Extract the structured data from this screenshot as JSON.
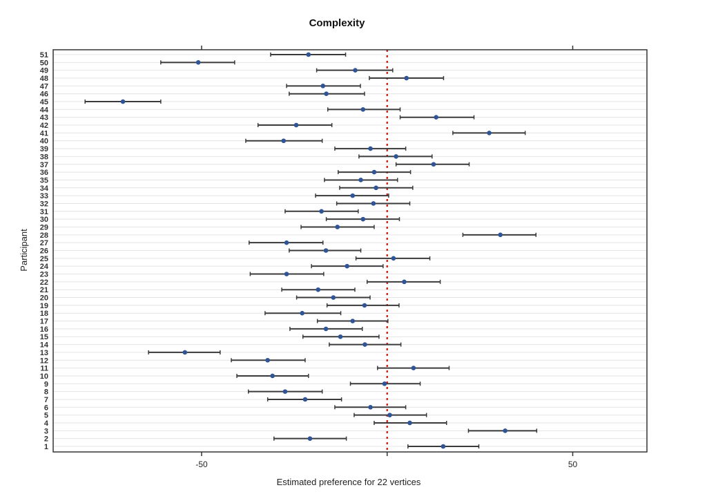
{
  "chart_data": {
    "type": "scatter",
    "subtype": "dot-plot-with-error-bars",
    "title": "Complexity",
    "xlabel": "Estimated preference for 22 vertices",
    "ylabel": "Participant",
    "xlim": [
      -90,
      70
    ],
    "xticks": [
      -50,
      50
    ],
    "reference_line": 0,
    "grid": "horizontal",
    "colors": {
      "point": "#2f5597",
      "bar": "#3a3a3a",
      "reference": "#d42a1e",
      "grid": "#e4e4e4"
    },
    "participants": [
      {
        "id": "1",
        "est": 15.1,
        "lo": 5.6,
        "hi": 24.7
      },
      {
        "id": "2",
        "est": -20.8,
        "lo": -30.5,
        "hi": -11.0
      },
      {
        "id": "3",
        "est": 31.8,
        "lo": 21.9,
        "hi": 40.3
      },
      {
        "id": "4",
        "est": 6.1,
        "lo": -3.5,
        "hi": 16.0
      },
      {
        "id": "5",
        "est": 0.7,
        "lo": -8.9,
        "hi": 10.6
      },
      {
        "id": "6",
        "est": -4.5,
        "lo": -14.1,
        "hi": 5.0
      },
      {
        "id": "7",
        "est": -22.1,
        "lo": -32.2,
        "hi": -12.3
      },
      {
        "id": "8",
        "est": -27.5,
        "lo": -37.4,
        "hi": -17.5
      },
      {
        "id": "9",
        "est": -0.7,
        "lo": -9.9,
        "hi": 8.9
      },
      {
        "id": "10",
        "est": -30.9,
        "lo": -40.5,
        "hi": -21.2
      },
      {
        "id": "11",
        "est": 7.1,
        "lo": -2.6,
        "hi": 16.7
      },
      {
        "id": "12",
        "est": -32.2,
        "lo": -42.0,
        "hi": -22.1
      },
      {
        "id": "13",
        "est": -54.5,
        "lo": -64.3,
        "hi": -45.0
      },
      {
        "id": "14",
        "est": -6.0,
        "lo": -15.6,
        "hi": 3.7
      },
      {
        "id": "15",
        "est": -12.6,
        "lo": -22.7,
        "hi": -2.2
      },
      {
        "id": "16",
        "est": -16.5,
        "lo": -26.2,
        "hi": -6.7
      },
      {
        "id": "17",
        "est": -9.3,
        "lo": -18.8,
        "hi": 0.2
      },
      {
        "id": "18",
        "est": -22.9,
        "lo": -32.9,
        "hi": -12.5
      },
      {
        "id": "19",
        "est": -6.1,
        "lo": -16.2,
        "hi": 3.2
      },
      {
        "id": "20",
        "est": -14.5,
        "lo": -24.4,
        "hi": -4.6
      },
      {
        "id": "21",
        "est": -18.6,
        "lo": -28.4,
        "hi": -8.7
      },
      {
        "id": "22",
        "est": 4.6,
        "lo": -5.4,
        "hi": 14.3
      },
      {
        "id": "23",
        "est": -27.1,
        "lo": -36.9,
        "hi": -17.1
      },
      {
        "id": "24",
        "est": -10.8,
        "lo": -20.4,
        "hi": -1.1
      },
      {
        "id": "25",
        "est": 1.7,
        "lo": -8.4,
        "hi": 11.5
      },
      {
        "id": "26",
        "est": -16.5,
        "lo": -26.4,
        "hi": -7.1
      },
      {
        "id": "27",
        "est": -27.1,
        "lo": -37.2,
        "hi": -17.3
      },
      {
        "id": "28",
        "est": 30.5,
        "lo": 20.4,
        "hi": 40.1
      },
      {
        "id": "29",
        "est": -13.4,
        "lo": -23.2,
        "hi": -3.5
      },
      {
        "id": "30",
        "est": -6.5,
        "lo": -16.4,
        "hi": 3.3
      },
      {
        "id": "31",
        "est": -17.7,
        "lo": -27.5,
        "hi": -7.8
      },
      {
        "id": "32",
        "est": -3.7,
        "lo": -13.6,
        "hi": 6.1
      },
      {
        "id": "33",
        "est": -9.3,
        "lo": -19.3,
        "hi": 0.4
      },
      {
        "id": "34",
        "est": -3.0,
        "lo": -12.8,
        "hi": 6.9
      },
      {
        "id": "35",
        "est": -7.1,
        "lo": -16.9,
        "hi": 2.8
      },
      {
        "id": "36",
        "est": -3.5,
        "lo": -13.2,
        "hi": 6.3
      },
      {
        "id": "37",
        "est": 12.5,
        "lo": 2.4,
        "hi": 22.1
      },
      {
        "id": "38",
        "est": 2.4,
        "lo": -7.6,
        "hi": 12.1
      },
      {
        "id": "39",
        "est": -4.5,
        "lo": -14.1,
        "hi": 5.0
      },
      {
        "id": "40",
        "est": -27.9,
        "lo": -38.1,
        "hi": -17.5
      },
      {
        "id": "41",
        "est": 27.5,
        "lo": 17.7,
        "hi": 37.2
      },
      {
        "id": "42",
        "est": -24.5,
        "lo": -34.8,
        "hi": -14.9
      },
      {
        "id": "43",
        "est": 13.2,
        "lo": 3.5,
        "hi": 23.4
      },
      {
        "id": "44",
        "est": -6.5,
        "lo": -16.0,
        "hi": 3.5
      },
      {
        "id": "45",
        "est": -71.2,
        "lo": -81.4,
        "hi": -61.0
      },
      {
        "id": "46",
        "est": -16.4,
        "lo": -26.4,
        "hi": -6.1
      },
      {
        "id": "47",
        "est": -17.3,
        "lo": -27.1,
        "hi": -7.2
      },
      {
        "id": "48",
        "est": 5.2,
        "lo": -4.8,
        "hi": 15.2
      },
      {
        "id": "49",
        "est": -8.6,
        "lo": -19.0,
        "hi": 1.5
      },
      {
        "id": "50",
        "est": -50.9,
        "lo": -61.0,
        "hi": -41.1
      },
      {
        "id": "51",
        "est": -21.2,
        "lo": -31.4,
        "hi": -11.2
      }
    ]
  }
}
